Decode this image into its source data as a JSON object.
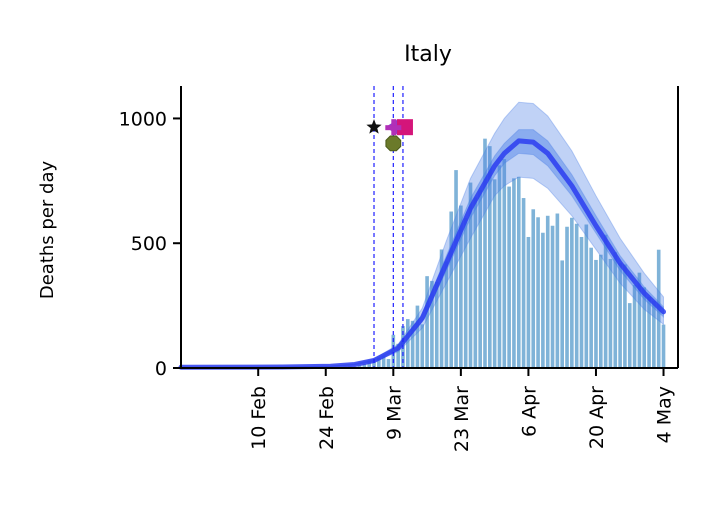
{
  "chart_data": {
    "type": "bar",
    "title": "Italy",
    "ylabel": "Deaths per day",
    "xlabel": "",
    "ylim": [
      0,
      1130
    ],
    "xlim": [
      "2020-01-25",
      "2020-05-07"
    ],
    "yticks": [
      0,
      500,
      1000
    ],
    "xticks": [
      {
        "date": "2020-02-10",
        "label": "10 Feb"
      },
      {
        "date": "2020-02-24",
        "label": "24 Feb"
      },
      {
        "date": "2020-03-09",
        "label": "9 Mar"
      },
      {
        "date": "2020-03-23",
        "label": "23 Mar"
      },
      {
        "date": "2020-04-06",
        "label": "6 Apr"
      },
      {
        "date": "2020-04-20",
        "label": "20 Apr"
      },
      {
        "date": "2020-05-04",
        "label": "4 May"
      }
    ],
    "bars": {
      "start_date": "2020-02-25",
      "color": "#7fb3d8",
      "values": [
        2,
        1,
        4,
        5,
        6,
        3,
        10,
        16,
        28,
        27,
        41,
        49,
        36,
        133,
        97,
        168,
        196,
        189,
        250,
        175,
        368,
        349,
        345,
        475,
        427,
        627,
        793,
        651,
        601,
        743,
        683,
        712,
        919,
        889,
        756,
        812,
        837,
        727,
        760,
        766,
        681,
        525,
        636,
        604,
        542,
        610,
        570,
        619,
        431,
        566,
        602,
        578,
        525,
        575,
        482,
        433,
        454,
        534,
        437,
        464,
        420,
        415,
        260,
        333,
        382,
        323,
        285,
        269,
        474,
        174
      ]
    },
    "model": {
      "color": "#2a3cf0",
      "band_color": "#4a7ee6",
      "dates": [
        "2020-01-25",
        "2020-02-15",
        "2020-02-25",
        "2020-03-01",
        "2020-03-05",
        "2020-03-10",
        "2020-03-15",
        "2020-03-20",
        "2020-03-25",
        "2020-03-30",
        "2020-04-01",
        "2020-04-04",
        "2020-04-07",
        "2020-04-10",
        "2020-04-15",
        "2020-04-20",
        "2020-04-25",
        "2020-04-30",
        "2020-05-04"
      ],
      "median": [
        3,
        4,
        7,
        14,
        30,
        80,
        200,
        420,
        640,
        810,
        860,
        910,
        905,
        860,
        730,
        570,
        420,
        300,
        225
      ],
      "inner_low": [
        3,
        4,
        7,
        13,
        28,
        75,
        185,
        390,
        600,
        770,
        820,
        860,
        855,
        810,
        690,
        540,
        390,
        275,
        205
      ],
      "inner_high": [
        3,
        4,
        7,
        15,
        32,
        85,
        215,
        450,
        680,
        850,
        900,
        955,
        955,
        910,
        775,
        610,
        450,
        325,
        245
      ],
      "outer_low": [
        3,
        4,
        6,
        12,
        25,
        65,
        160,
        340,
        520,
        690,
        730,
        765,
        760,
        720,
        610,
        475,
        340,
        235,
        175
      ],
      "outer_high": [
        3,
        4,
        8,
        17,
        36,
        95,
        240,
        510,
        760,
        940,
        1000,
        1065,
        1060,
        1010,
        870,
        690,
        520,
        380,
        285
      ]
    },
    "interventions": {
      "line_color": "#1f1fff",
      "lines": [
        "2020-03-05",
        "2020-03-09",
        "2020-03-11"
      ],
      "markers": [
        {
          "shape": "star",
          "date": "2020-03-05",
          "y": 965,
          "color": "#111111"
        },
        {
          "shape": "triangle",
          "date": "2020-03-09",
          "y": 965,
          "color": "#8a3fd0"
        },
        {
          "shape": "square",
          "date": "2020-03-11",
          "y": 965,
          "color": "#d4157a"
        },
        {
          "shape": "plus",
          "date": "2020-03-09",
          "y": 965,
          "color": "#b12fb8"
        },
        {
          "shape": "octagon",
          "date": "2020-03-09",
          "y": 900,
          "color": "#6b7a2a"
        }
      ]
    }
  }
}
